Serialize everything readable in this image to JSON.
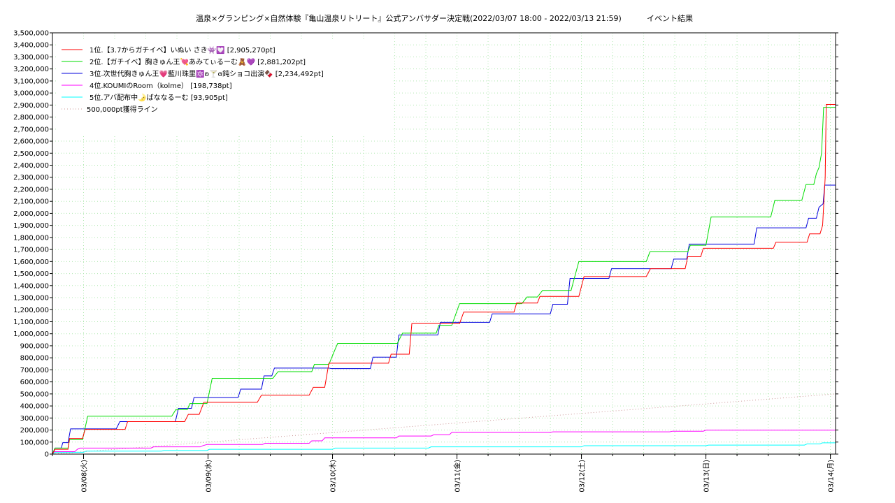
{
  "title_left": "温泉×グランピング×自然体験『亀山温泉リトリート』公式アンバサダー決定戦(2022/03/07 18:00 - 2022/03/13 21:59)",
  "title_right": "イベント結果",
  "chart_data": {
    "type": "line",
    "ylim": [
      0,
      3500000
    ],
    "y_tick_step": 100000,
    "y_tick_labels": [
      "0",
      "100,000",
      "200,000",
      "300,000",
      "400,000",
      "500,000",
      "600,000",
      "700,000",
      "800,000",
      "900,000",
      "1,000,000",
      "1,100,000",
      "1,200,000",
      "1,300,000",
      "1,400,000",
      "1,500,000",
      "1,600,000",
      "1,700,000",
      "1,800,000",
      "1,900,000",
      "2,000,000",
      "2,100,000",
      "2,200,000",
      "2,300,000",
      "2,400,000",
      "2,500,000",
      "2,600,000",
      "2,700,000",
      "2,800,000",
      "2,900,000",
      "3,000,000",
      "3,100,000",
      "3,200,000",
      "3,300,000",
      "3,400,000",
      "3,500,000"
    ],
    "x_unit": "hours since 2022/03/07 18:00",
    "xlim": [
      0,
      151
    ],
    "x_ticks": [
      {
        "x": 6,
        "label": "03/08(火)"
      },
      {
        "x": 30,
        "label": "03/09(水)"
      },
      {
        "x": 54,
        "label": "03/10(木)"
      },
      {
        "x": 78,
        "label": "03/11(金)"
      },
      {
        "x": 102,
        "label": "03/12(土)"
      },
      {
        "x": 126,
        "label": "03/13(日)"
      },
      {
        "x": 150,
        "label": "03/14(月)"
      }
    ],
    "grid": true,
    "legend_position": "top-left",
    "series": [
      {
        "name": "1位.【3.7からガチイベ】いぬい さき👾💟 [2,905,270pt]",
        "color": "#ff0000",
        "points": [
          [
            0,
            0
          ],
          [
            0.5,
            40000
          ],
          [
            3,
            40000
          ],
          [
            3.3,
            130000
          ],
          [
            5.8,
            130000
          ],
          [
            6.3,
            205000
          ],
          [
            14,
            205000
          ],
          [
            14.5,
            270000
          ],
          [
            25.5,
            270000
          ],
          [
            26.2,
            330000
          ],
          [
            28.3,
            330000
          ],
          [
            29.2,
            430000
          ],
          [
            39.5,
            430000
          ],
          [
            40.3,
            490000
          ],
          [
            49.5,
            490000
          ],
          [
            50.3,
            555000
          ],
          [
            52.5,
            555000
          ],
          [
            53.3,
            755000
          ],
          [
            64.8,
            755000
          ],
          [
            65.3,
            830000
          ],
          [
            68.8,
            830000
          ],
          [
            69.3,
            1085000
          ],
          [
            78.5,
            1085000
          ],
          [
            79.3,
            1180000
          ],
          [
            89,
            1180000
          ],
          [
            89.5,
            1255000
          ],
          [
            93.5,
            1255000
          ],
          [
            94,
            1310000
          ],
          [
            101.5,
            1310000
          ],
          [
            102.5,
            1475000
          ],
          [
            114.5,
            1475000
          ],
          [
            115.3,
            1540000
          ],
          [
            122,
            1540000
          ],
          [
            122.5,
            1640000
          ],
          [
            125,
            1640000
          ],
          [
            125.5,
            1710000
          ],
          [
            139,
            1710000
          ],
          [
            139.5,
            1760000
          ],
          [
            145.5,
            1760000
          ],
          [
            146,
            1830000
          ],
          [
            148,
            1830000
          ],
          [
            148.5,
            1900000
          ],
          [
            149,
            2300000
          ],
          [
            149.2,
            2905270
          ],
          [
            151,
            2905270
          ]
        ]
      },
      {
        "name": "2位.【ガチイベ】胸きゅん王💘あみてぃるーむ🧸💜 [2,881,202pt]",
        "color": "#00dd00",
        "points": [
          [
            0,
            0
          ],
          [
            0.5,
            50000
          ],
          [
            3,
            50000
          ],
          [
            3.3,
            120000
          ],
          [
            5.8,
            120000
          ],
          [
            6.8,
            315000
          ],
          [
            23,
            315000
          ],
          [
            23.8,
            370000
          ],
          [
            26,
            370000
          ],
          [
            26.5,
            420000
          ],
          [
            29.8,
            420000
          ],
          [
            30.8,
            630000
          ],
          [
            42.5,
            630000
          ],
          [
            43.5,
            685000
          ],
          [
            50,
            685000
          ],
          [
            50.5,
            745000
          ],
          [
            53.3,
            745000
          ],
          [
            54.5,
            870000
          ],
          [
            55,
            920000
          ],
          [
            66.5,
            920000
          ],
          [
            67.5,
            1005000
          ],
          [
            74,
            1005000
          ],
          [
            74.5,
            1070000
          ],
          [
            77,
            1070000
          ],
          [
            78.5,
            1250000
          ],
          [
            90.5,
            1250000
          ],
          [
            91.5,
            1305000
          ],
          [
            93.5,
            1305000
          ],
          [
            94.5,
            1360000
          ],
          [
            100,
            1360000
          ],
          [
            101.5,
            1600000
          ],
          [
            114.5,
            1600000
          ],
          [
            115.2,
            1680000
          ],
          [
            122.5,
            1680000
          ],
          [
            123,
            1735000
          ],
          [
            126,
            1735000
          ],
          [
            127,
            1970000
          ],
          [
            138.5,
            1970000
          ],
          [
            139.3,
            2110000
          ],
          [
            144.5,
            2110000
          ],
          [
            145.3,
            2240000
          ],
          [
            146.8,
            2240000
          ],
          [
            147.3,
            2330000
          ],
          [
            147.8,
            2380000
          ],
          [
            148.3,
            2500000
          ],
          [
            148.7,
            2881202
          ],
          [
            151,
            2881202
          ]
        ]
      },
      {
        "name": "3位.次世代胸きゅん王💗藍川珠里🔯ʚ🍸ɞ鈍ショコ出演🍫 [2,234,492pt]",
        "color": "#0000dd",
        "points": [
          [
            0,
            0
          ],
          [
            0.5,
            50000
          ],
          [
            1.7,
            50000
          ],
          [
            2,
            95000
          ],
          [
            3,
            95000
          ],
          [
            3.5,
            210000
          ],
          [
            12.3,
            210000
          ],
          [
            13,
            270000
          ],
          [
            23.7,
            270000
          ],
          [
            24.3,
            380000
          ],
          [
            26.8,
            380000
          ],
          [
            27.3,
            470000
          ],
          [
            35.8,
            470000
          ],
          [
            36.3,
            540000
          ],
          [
            40.3,
            540000
          ],
          [
            40.8,
            650000
          ],
          [
            42.3,
            650000
          ],
          [
            42.8,
            715000
          ],
          [
            53.3,
            715000
          ],
          [
            53.8,
            710000
          ],
          [
            61.3,
            710000
          ],
          [
            61.8,
            805000
          ],
          [
            66.3,
            805000
          ],
          [
            66.8,
            990000
          ],
          [
            74.3,
            990000
          ],
          [
            74.8,
            1095000
          ],
          [
            84.3,
            1095000
          ],
          [
            84.8,
            1165000
          ],
          [
            96,
            1165000
          ],
          [
            96.5,
            1245000
          ],
          [
            99.3,
            1245000
          ],
          [
            99.8,
            1460000
          ],
          [
            107.3,
            1460000
          ],
          [
            107.8,
            1540000
          ],
          [
            119.3,
            1540000
          ],
          [
            119.8,
            1620000
          ],
          [
            122.3,
            1620000
          ],
          [
            122.8,
            1745000
          ],
          [
            135.3,
            1745000
          ],
          [
            135.8,
            1880000
          ],
          [
            145.3,
            1880000
          ],
          [
            145.8,
            1960000
          ],
          [
            147.3,
            1960000
          ],
          [
            147.8,
            2050000
          ],
          [
            148.6,
            2080000
          ],
          [
            148.9,
            2234492
          ],
          [
            151,
            2234492
          ]
        ]
      },
      {
        "name": "4位.KOUMIのRoom（kolme） [198,738pt]",
        "color": "#ff00ff",
        "points": [
          [
            0,
            0
          ],
          [
            0.3,
            20000
          ],
          [
            4.3,
            20000
          ],
          [
            4.8,
            40000
          ],
          [
            5.3,
            50000
          ],
          [
            19,
            50000
          ],
          [
            19.5,
            60000
          ],
          [
            28.5,
            60000
          ],
          [
            29,
            70000
          ],
          [
            29.8,
            80000
          ],
          [
            40.5,
            80000
          ],
          [
            41,
            90000
          ],
          [
            49.5,
            90000
          ],
          [
            50,
            110000
          ],
          [
            52,
            110000
          ],
          [
            52.5,
            135000
          ],
          [
            66.3,
            135000
          ],
          [
            66.8,
            150000
          ],
          [
            73,
            150000
          ],
          [
            73.5,
            160000
          ],
          [
            76.5,
            160000
          ],
          [
            77,
            180000
          ],
          [
            96,
            180000
          ],
          [
            96.5,
            185000
          ],
          [
            119,
            185000
          ],
          [
            119.5,
            190000
          ],
          [
            125.5,
            190000
          ],
          [
            126,
            198738
          ],
          [
            151,
            198738
          ]
        ]
      },
      {
        "name": "5位.アバ配布中🌛ばななるーむ [93,905pt]",
        "color": "#00ffff",
        "points": [
          [
            0,
            0
          ],
          [
            0.5,
            15000
          ],
          [
            6,
            15000
          ],
          [
            6.5,
            25000
          ],
          [
            21,
            25000
          ],
          [
            21.5,
            30000
          ],
          [
            29.8,
            30000
          ],
          [
            30.3,
            40000
          ],
          [
            54,
            40000
          ],
          [
            54.5,
            50000
          ],
          [
            72.5,
            50000
          ],
          [
            73,
            60000
          ],
          [
            102,
            60000
          ],
          [
            102.5,
            70000
          ],
          [
            126,
            70000
          ],
          [
            126.5,
            75000
          ],
          [
            145,
            75000
          ],
          [
            145.5,
            85000
          ],
          [
            148,
            85000
          ],
          [
            148.5,
            93905
          ],
          [
            151,
            93905
          ]
        ]
      },
      {
        "name": "500,000pt獲得ライン",
        "color": "#cc9999",
        "dashed": true,
        "points": [
          [
            0,
            0
          ],
          [
            151,
            500000
          ]
        ]
      }
    ]
  }
}
